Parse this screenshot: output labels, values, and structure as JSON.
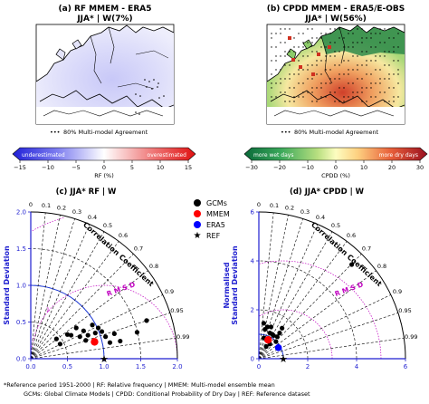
{
  "chart_data": [
    {
      "type": "heatmap",
      "title": "(a) RF MMEM - ERA5",
      "subtitle": "JJA* | W(7%)",
      "agreement_label": "80% Multi-model Agreement",
      "colorbar": {
        "label": "RF (%)",
        "ticks": [
          "−15",
          "−10",
          "−5",
          "0",
          "5",
          "10",
          "15"
        ],
        "min": -15,
        "max": 15,
        "left_text": "underestimated",
        "right_text": "overestimated",
        "left_color": "#1d2bd6",
        "right_color": "#ff2020",
        "colormap": "bwr"
      }
    },
    {
      "type": "heatmap",
      "title": "(b) CPDD MMEM - ERA5/E-OBS",
      "subtitle": "JJA* | W(56%)",
      "agreement_label": "80% Multi-model Agreement",
      "colorbar": {
        "label": "CPDD (%)",
        "ticks": [
          "−30",
          "−20",
          "−10",
          "0",
          "10",
          "20",
          "30"
        ],
        "min": -30,
        "max": 30,
        "left_text": "more wet days",
        "right_text": "more dry days",
        "left_color": "#1a7a3a",
        "right_color": "#a01e1e",
        "colormap": "RdYlGn_r"
      }
    },
    {
      "type": "scatter",
      "subtype": "taylor_diagram",
      "title": "(c) JJA* RF | W",
      "ylabel": "Standard Deviation",
      "arc_label": "Correlation Coefficient",
      "rmsd_label": "R M S D",
      "xlim": [
        0,
        2.0
      ],
      "ylim": [
        0,
        2.0
      ],
      "x_ticks": [
        "0.0",
        "0.5",
        "1.0",
        "1.5",
        "2.0"
      ],
      "y_ticks": [
        "0.0",
        "0.5",
        "1.0",
        "1.5",
        "2.0"
      ],
      "corr_ticks": [
        "0",
        "0.1",
        "0.2",
        "0.3",
        "0.4",
        "0.5",
        "0.6",
        "0.7",
        "0.8",
        "0.9",
        "0.95",
        "0.99"
      ],
      "corr_values": [
        0,
        0.1,
        0.2,
        0.3,
        0.4,
        0.5,
        0.6,
        0.7,
        0.8,
        0.9,
        0.95,
        0.99
      ],
      "rmsd_ticks": [
        "1",
        "2"
      ],
      "rmsd_values": [
        1,
        2
      ],
      "ref_std": 1.0,
      "gcms": [
        [
          0.35,
          0.27
        ],
        [
          0.4,
          0.2
        ],
        [
          0.5,
          0.33
        ],
        [
          0.55,
          0.32
        ],
        [
          0.62,
          0.42
        ],
        [
          0.67,
          0.3
        ],
        [
          0.72,
          0.38
        ],
        [
          0.75,
          0.25
        ],
        [
          0.78,
          0.32
        ],
        [
          0.88,
          0.35
        ],
        [
          0.92,
          0.42
        ],
        [
          0.97,
          0.37
        ],
        [
          1.02,
          0.3
        ],
        [
          1.08,
          0.22
        ],
        [
          1.14,
          0.34
        ],
        [
          1.22,
          0.24
        ],
        [
          1.45,
          0.36
        ],
        [
          1.58,
          0.52
        ],
        [
          0.84,
          0.46
        ]
      ],
      "mmem": [
        0.87,
        0.23
      ],
      "era5": null,
      "ref": [
        1.0,
        0.0
      ]
    },
    {
      "type": "scatter",
      "subtype": "taylor_diagram",
      "title": "(d) JJA* CPDD | W",
      "ylabel": "Normalised Standard Deviation",
      "arc_label": "Correlation Coefficient",
      "rmsd_label": "R M S D",
      "xlim": [
        0,
        6
      ],
      "ylim": [
        0,
        6
      ],
      "x_ticks": [
        "0",
        "2",
        "4",
        "6"
      ],
      "y_ticks": [
        "0",
        "2",
        "4",
        "6"
      ],
      "corr_ticks": [
        "0",
        "0.1",
        "0.2",
        "0.3",
        "0.4",
        "0.5",
        "0.6",
        "0.7",
        "0.8",
        "0.9",
        "0.95",
        "0.99"
      ],
      "corr_values": [
        0,
        0.1,
        0.2,
        0.3,
        0.4,
        0.5,
        0.6,
        0.7,
        0.8,
        0.9,
        0.95,
        0.99
      ],
      "rmsd_ticks": [
        "2",
        "4"
      ],
      "rmsd_values": [
        2,
        4
      ],
      "ref_std": 1.0,
      "gcms": [
        [
          0.2,
          1.45
        ],
        [
          0.25,
          1.2
        ],
        [
          0.35,
          1.3
        ],
        [
          0.45,
          1.05
        ],
        [
          0.5,
          1.3
        ],
        [
          0.55,
          1.0
        ],
        [
          0.2,
          0.85
        ],
        [
          0.35,
          0.75
        ],
        [
          0.6,
          0.95
        ],
        [
          0.45,
          0.6
        ],
        [
          0.7,
          0.7
        ],
        [
          0.75,
          0.9
        ],
        [
          0.85,
          1.05
        ],
        [
          0.95,
          1.25
        ],
        [
          0.3,
          0.5
        ],
        [
          3.8,
          3.85
        ]
      ],
      "mmem": [
        0.38,
        0.77
      ],
      "era5": [
        0.8,
        0.45
      ],
      "ref": [
        1.0,
        0.0
      ]
    }
  ],
  "legend": {
    "items": [
      {
        "label": "GCMs",
        "marker": "circle",
        "color": "#000000"
      },
      {
        "label": "MMEM",
        "marker": "circle",
        "color": "#ff0000"
      },
      {
        "label": "ERA5",
        "marker": "circle",
        "color": "#0000ff"
      },
      {
        "label": "REF",
        "marker": "star",
        "color": "#000000"
      }
    ]
  },
  "footnote": {
    "line1": "*Reference period 1951-2000 | RF: Relative frequency | MMEM: Multi-model ensemble mean",
    "line2": "GCMs: Global Climate Models | CPDD: Conditional Probability of Dry Day | REF: Reference dataset"
  },
  "colors": {
    "axis_blue": "#1f1fd0",
    "std_arc": "#1f3bd8",
    "rmsd_magenta": "#c000c0",
    "map_land": "#f2f2f2"
  }
}
